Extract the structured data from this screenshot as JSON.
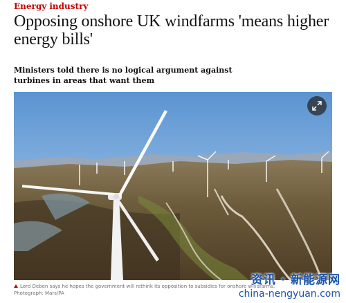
{
  "article": {
    "section": "Energy industry",
    "headline": "Opposing onshore UK windfarms 'means higher energy bills'",
    "standfirst": "Ministers told there is no logical argument against turbines in areas that want them",
    "caption": "Lord Deben says he hopes the government will rethink its opposition to subsidies for onshore windfarms.",
    "credit": "Photograph: Mars/PA"
  },
  "watermark": {
    "line1": "资讯 · 新能源网",
    "line2": "china-nengyuan.com"
  },
  "icons": {
    "expand": "expand-arrows-icon",
    "caption_marker": "triangle-icon"
  },
  "colors": {
    "section": "#c70000",
    "text": "#121212",
    "caption": "#707070",
    "watermark": "#1a52a8"
  }
}
